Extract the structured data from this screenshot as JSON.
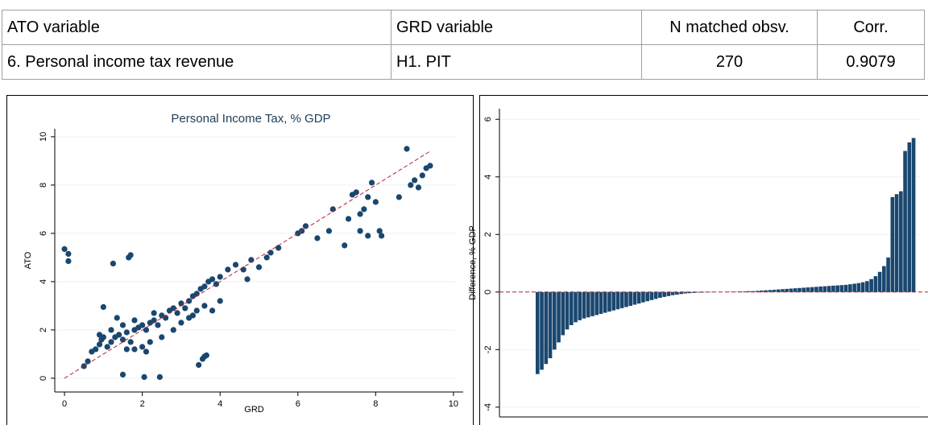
{
  "table": {
    "header": [
      "ATO variable",
      "GRD variable",
      "N matched obsv.",
      "Corr."
    ],
    "rows": [
      [
        "6. Personal income tax revenue",
        "H1. PIT",
        "270",
        "0.9079"
      ]
    ]
  },
  "chart_data": [
    {
      "type": "scatter",
      "title": "Personal Income Tax, % GDP",
      "x_label": "GRD",
      "y_label": "ATO",
      "color": "#1a476f",
      "grid": true,
      "xlim": [
        -0.25,
        10.25
      ],
      "ylim": [
        -0.57,
        10.33
      ],
      "xticks": [
        0,
        2,
        4,
        6,
        8,
        10
      ],
      "yticks": [
        0,
        2,
        4,
        6,
        8,
        10
      ],
      "diagonal": {
        "color": "#b22234",
        "x": [
          0,
          9.4
        ],
        "y": [
          0,
          9.4
        ]
      },
      "x": [
        0,
        0.1,
        0.1,
        1.25,
        1.65,
        1.7,
        1.0,
        1.35,
        1.5,
        2.05,
        2.45,
        3.45,
        3.55,
        3.6,
        3.65,
        0.5,
        0.6,
        0.7,
        0.8,
        0.9,
        1.0,
        1.1,
        1.2,
        1.3,
        1.4,
        1.5,
        1.6,
        1.7,
        1.8,
        1.9,
        2.0,
        2.1,
        2.2,
        2.3,
        2.4,
        2.5,
        2.6,
        2.7,
        2.8,
        2.9,
        3.0,
        3.1,
        3.2,
        3.3,
        3.4,
        3.5,
        3.6,
        3.7,
        3.8,
        3.9,
        4.0,
        4.2,
        4.4,
        4.6,
        4.7,
        4.8,
        5.0,
        5.2,
        5.3,
        5.5,
        6.0,
        6.1,
        6.2,
        6.5,
        6.8,
        6.9,
        7.2,
        7.3,
        7.4,
        7.5,
        7.6,
        7.7,
        7.8,
        7.9,
        8.0,
        8.1,
        8.15,
        8.6,
        8.8,
        8.9,
        9.0,
        9.1,
        9.2,
        9.3,
        9.4,
        7.8,
        7.6,
        2.0,
        2.2,
        2.5,
        2.8,
        3.0,
        3.2,
        3.4,
        3.6,
        3.8,
        4.0,
        3.3,
        1.8,
        1.6,
        2.1,
        0.9,
        1.2,
        1.5,
        1.8,
        2.3,
        0.95
      ],
      "y": [
        5.35,
        5.15,
        4.85,
        4.75,
        5.0,
        5.1,
        2.95,
        2.5,
        0.15,
        0.05,
        0.05,
        0.55,
        0.8,
        0.9,
        0.95,
        0.5,
        0.7,
        1.1,
        1.2,
        1.4,
        1.7,
        1.3,
        1.5,
        1.7,
        1.8,
        1.6,
        1.9,
        1.5,
        2.0,
        2.1,
        2.2,
        2.0,
        2.3,
        2.4,
        2.2,
        2.6,
        2.5,
        2.8,
        2.9,
        2.7,
        3.1,
        2.9,
        3.2,
        3.4,
        3.5,
        3.7,
        3.8,
        4.0,
        4.1,
        3.9,
        4.2,
        4.5,
        4.7,
        4.5,
        4.1,
        4.9,
        4.6,
        5.0,
        5.2,
        5.4,
        6.0,
        6.1,
        6.3,
        5.8,
        6.1,
        7.0,
        5.5,
        6.6,
        7.6,
        7.7,
        6.8,
        7.0,
        7.5,
        8.1,
        7.3,
        6.1,
        5.9,
        7.5,
        9.5,
        8.0,
        8.2,
        7.9,
        8.4,
        8.7,
        8.8,
        5.9,
        6.1,
        1.3,
        1.5,
        1.7,
        2.0,
        2.3,
        2.5,
        2.8,
        3.0,
        2.8,
        3.2,
        2.6,
        1.2,
        1.2,
        1.1,
        1.8,
        2.0,
        2.2,
        2.4,
        2.7,
        1.6
      ]
    },
    {
      "type": "bar",
      "y_label": "Difference, % GDP",
      "color": "#1a476f",
      "grid": true,
      "refline": {
        "value": 0,
        "color": "#b22234"
      },
      "ylim": [
        -4.34,
        6.37
      ],
      "yticks": [
        -4,
        -2,
        0,
        2,
        4,
        6
      ],
      "values": [
        -2.85,
        -2.7,
        -2.5,
        -2.3,
        -2.0,
        -1.75,
        -1.5,
        -1.3,
        -1.15,
        -1.05,
        -0.98,
        -0.92,
        -0.88,
        -0.84,
        -0.8,
        -0.76,
        -0.72,
        -0.68,
        -0.64,
        -0.6,
        -0.56,
        -0.52,
        -0.48,
        -0.44,
        -0.4,
        -0.36,
        -0.32,
        -0.28,
        -0.24,
        -0.2,
        -0.17,
        -0.14,
        -0.11,
        -0.09,
        -0.07,
        -0.05,
        -0.04,
        -0.03,
        -0.02,
        -0.02,
        -0.01,
        -0.01,
        0,
        0,
        0,
        0.01,
        0.01,
        0.01,
        0.02,
        0.02,
        0.03,
        0.03,
        0.04,
        0.05,
        0.06,
        0.07,
        0.08,
        0.09,
        0.1,
        0.11,
        0.12,
        0.13,
        0.14,
        0.15,
        0.16,
        0.17,
        0.18,
        0.19,
        0.2,
        0.21,
        0.22,
        0.23,
        0.24,
        0.25,
        0.27,
        0.29,
        0.31,
        0.34,
        0.38,
        0.45,
        0.55,
        0.7,
        0.9,
        1.2,
        3.3,
        3.4,
        3.5,
        4.9,
        5.2,
        5.35
      ]
    }
  ]
}
